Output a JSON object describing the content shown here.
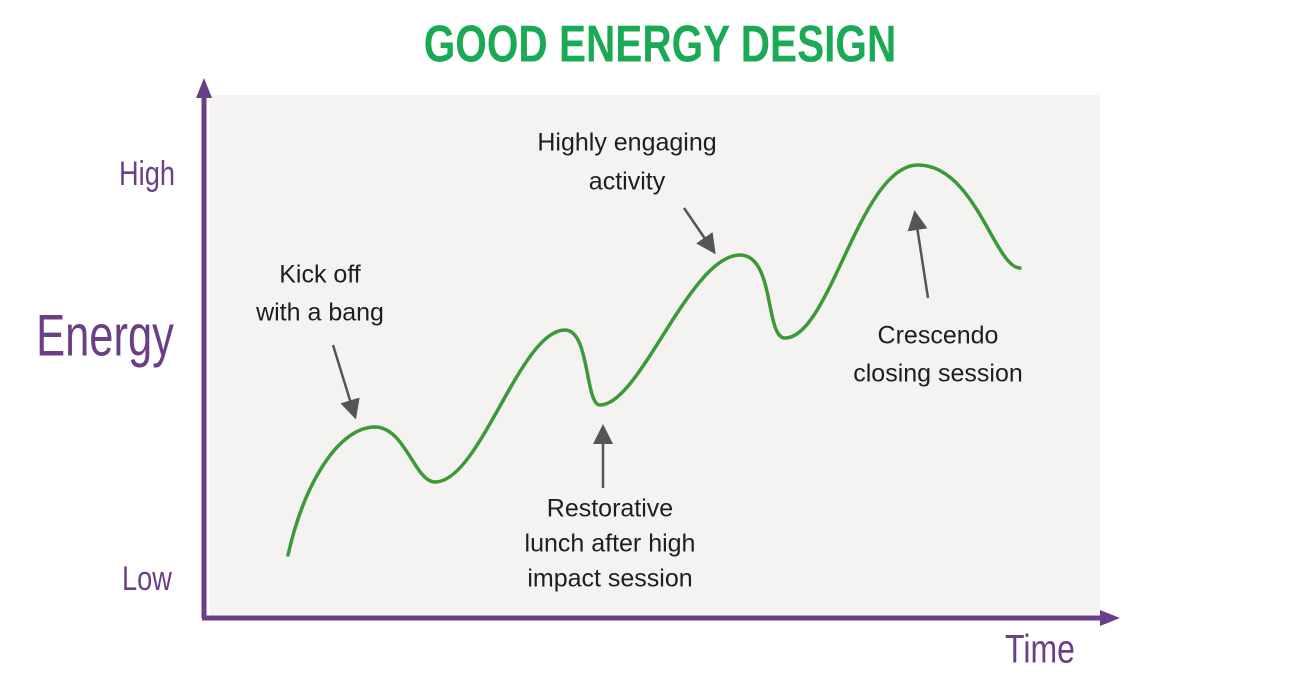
{
  "title": "GOOD ENERGY DESIGN",
  "y_axis": {
    "label": "Energy",
    "high": "High",
    "low": "Low"
  },
  "x_axis": {
    "label": "Time"
  },
  "annotations": [
    {
      "lines": [
        "Kick off",
        "with a bang"
      ]
    },
    {
      "lines": [
        "Highly engaging",
        "activity"
      ]
    },
    {
      "lines": [
        "Restorative",
        "lunch after high",
        "impact session"
      ]
    },
    {
      "lines": [
        "Crescendo",
        "closing session"
      ]
    }
  ]
}
